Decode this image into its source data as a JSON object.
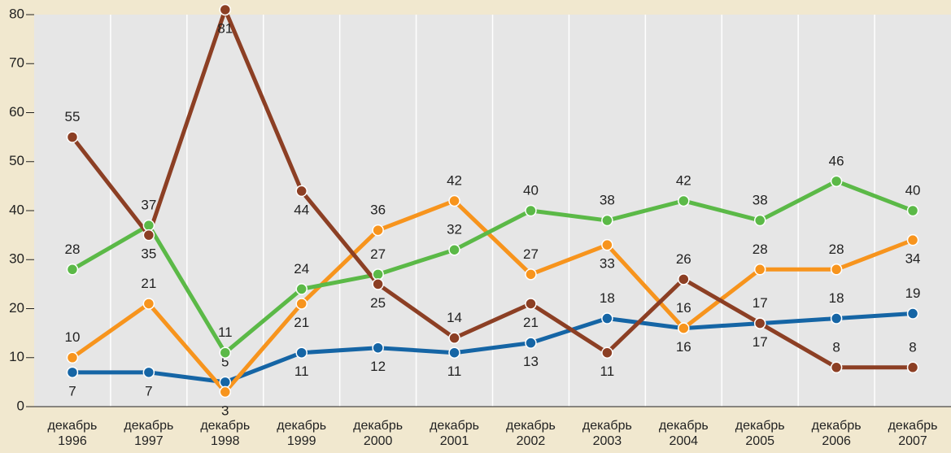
{
  "chart_data": {
    "type": "line",
    "categories": [
      "декабрь 1996",
      "декабрь 1997",
      "декабрь 1998",
      "декабрь 1999",
      "декабрь 2000",
      "декабрь 2001",
      "декабрь 2002",
      "декабрь 2003",
      "декабрь 2004",
      "декабрь 2005",
      "декабрь 2006",
      "декабрь 2007"
    ],
    "series": [
      {
        "color": "#1565a5",
        "values": [
          7,
          7,
          5,
          11,
          12,
          11,
          13,
          18,
          16,
          17,
          18,
          19
        ]
      },
      {
        "color": "#f7941d",
        "values": [
          10,
          21,
          3,
          21,
          36,
          42,
          27,
          33,
          16,
          28,
          28,
          34
        ]
      },
      {
        "color": "#5bb947",
        "values": [
          28,
          37,
          11,
          24,
          27,
          32,
          40,
          38,
          42,
          38,
          46,
          40
        ]
      },
      {
        "color": "#8c3f24",
        "values": [
          55,
          35,
          81,
          44,
          25,
          14,
          21,
          11,
          26,
          17,
          8,
          8
        ]
      }
    ],
    "ylim": [
      0,
      80
    ],
    "yticks": [
      0,
      10,
      20,
      30,
      40,
      50,
      60,
      70,
      80
    ],
    "grid": true
  }
}
